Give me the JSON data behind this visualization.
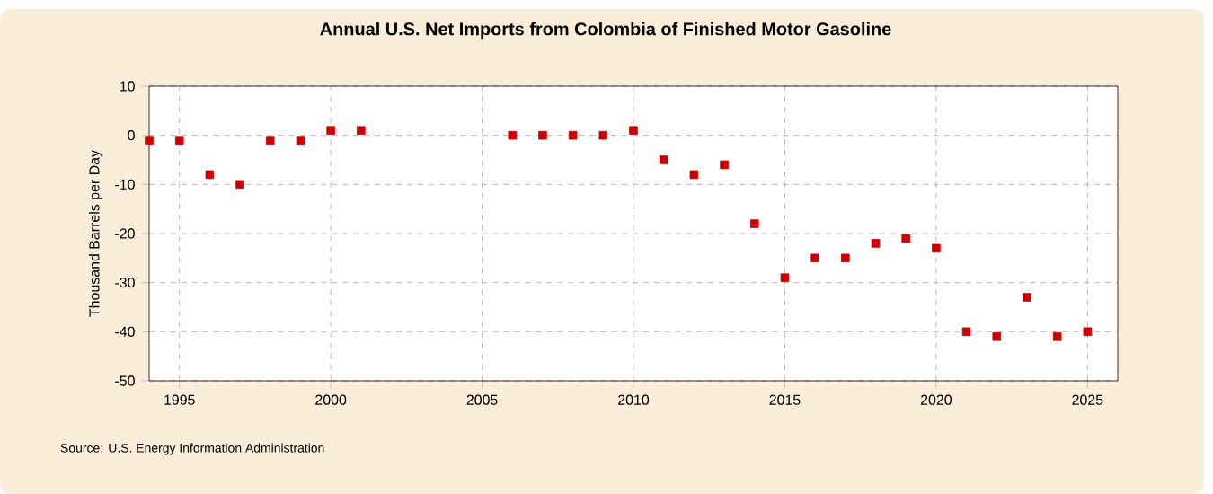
{
  "chart_data": {
    "type": "scatter",
    "title": "Annual U.S. Net Imports from Colombia of Finished Motor Gasoline",
    "ylabel": "Thousand Barrels per Day",
    "annotations": [
      "Source: U.S. Energy Information Administration"
    ],
    "x": [
      1994,
      1995,
      1996,
      1997,
      1998,
      1999,
      2000,
      2001,
      2006,
      2007,
      2008,
      2009,
      2010,
      2011,
      2012,
      2013,
      2014,
      2015,
      2016,
      2017,
      2018,
      2019,
      2020,
      2021,
      2022,
      2023,
      2024,
      2025
    ],
    "values": [
      -1,
      -1,
      -8,
      -10,
      -1,
      -1,
      1,
      1,
      0,
      0,
      0,
      0,
      1,
      -5,
      -8,
      -6,
      -18,
      -29,
      -25,
      -25,
      -22,
      -21,
      -23,
      -40,
      -41,
      -33,
      -41,
      -40
    ],
    "color": "#cc0000",
    "marker": "square",
    "xlim": [
      1994,
      2026
    ],
    "xticks": [
      1995,
      2000,
      2005,
      2010,
      2015,
      2020,
      2025
    ],
    "ylim": [
      -50,
      10
    ],
    "yticks": [
      -50,
      -40,
      -30,
      -20,
      -10,
      0,
      10
    ],
    "grid": true
  }
}
